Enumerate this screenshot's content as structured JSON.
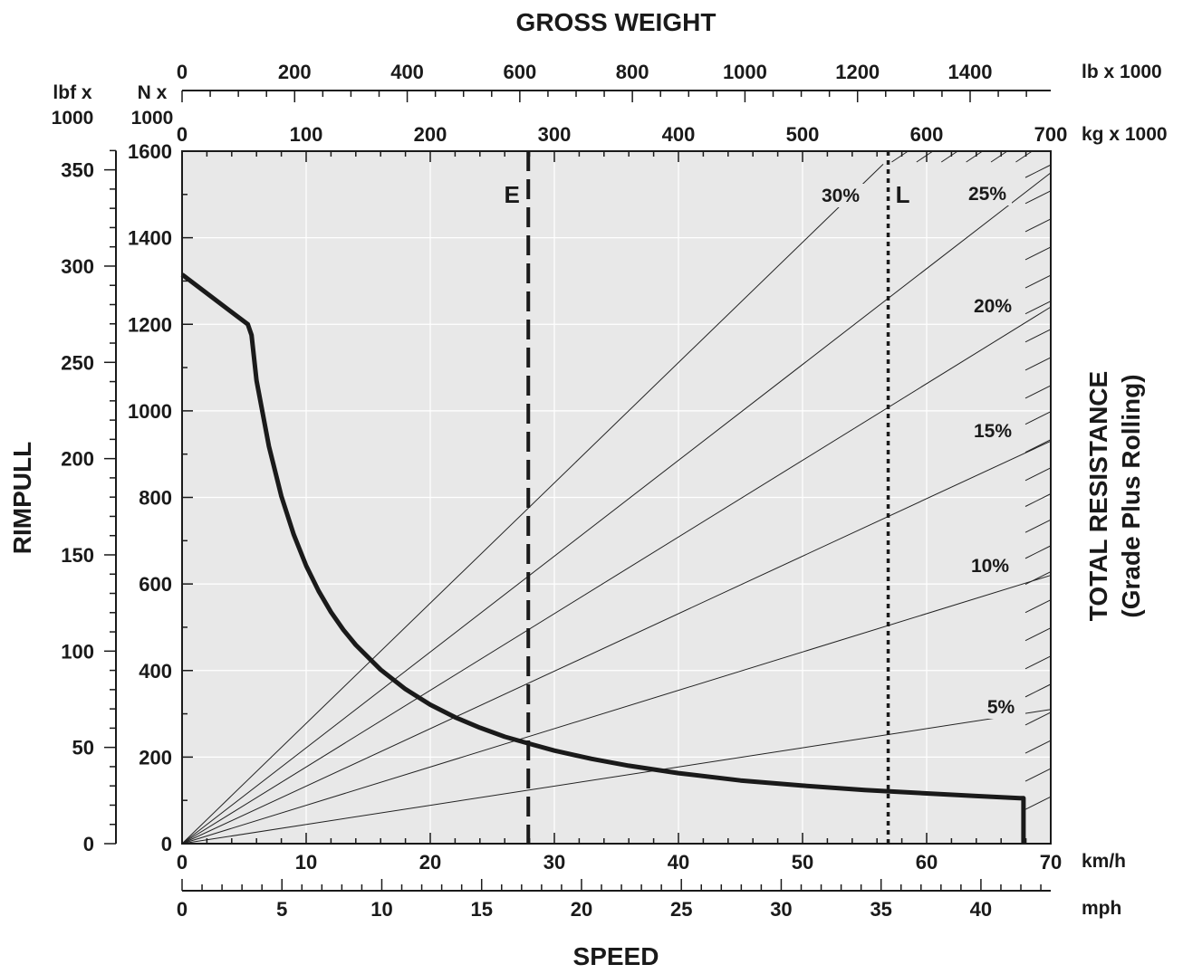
{
  "chart_data": {
    "type": "line",
    "title": "GROSS WEIGHT",
    "xlabel": "SPEED",
    "ylabel": "RIMPULL",
    "y2label": "TOTAL RESISTANCE",
    "y2sublabel": "(Grade Plus Rolling)",
    "x_kmh": {
      "unit": "km/h",
      "range": [
        0,
        70
      ],
      "ticks": [
        0,
        10,
        20,
        30,
        40,
        50,
        60,
        70
      ]
    },
    "x_mph": {
      "unit": "mph",
      "ticks": [
        0,
        5,
        10,
        15,
        20,
        25,
        30,
        35,
        40
      ]
    },
    "y_kN": {
      "unit_line1": "N x",
      "unit_line2": "1000",
      "range": [
        0,
        1600
      ],
      "ticks": [
        0,
        200,
        400,
        600,
        800,
        1000,
        1200,
        1400,
        1600
      ]
    },
    "y_lbf": {
      "unit_line1": "lbf x",
      "unit_line2": "1000",
      "ticks": [
        0,
        50,
        100,
        150,
        200,
        250,
        300,
        350
      ]
    },
    "top_kg": {
      "unit": "kg x 1000",
      "range": [
        0,
        700
      ],
      "ticks": [
        0,
        100,
        200,
        300,
        400,
        500,
        600,
        700
      ]
    },
    "top_lb": {
      "unit": "lb x 1000",
      "ticks": [
        0,
        200,
        400,
        600,
        800,
        1000,
        1200,
        1400
      ]
    },
    "rimpull_curve": {
      "x": [
        0,
        5.3,
        5.6,
        6,
        7,
        8,
        9,
        10,
        11,
        12,
        13,
        14,
        16,
        18,
        20,
        22,
        24,
        26,
        28,
        30,
        33,
        36,
        40,
        45,
        50,
        55,
        60,
        64,
        67.5,
        67.8,
        67.8
      ],
      "y": [
        1315,
        1200,
        1175,
        1070,
        918,
        803,
        714,
        642,
        584,
        535,
        494,
        459,
        402,
        357,
        321,
        292,
        268,
        247,
        231,
        215,
        196,
        180,
        163,
        146,
        134,
        124,
        116,
        110,
        105,
        105,
        0
      ]
    },
    "grade_lines": [
      {
        "label": "5%",
        "end": [
          70,
          310
        ]
      },
      {
        "label": "10%",
        "end": [
          70,
          620
        ]
      },
      {
        "label": "15%",
        "end": [
          70,
          930
        ]
      },
      {
        "label": "20%",
        "end": [
          70,
          1240
        ]
      },
      {
        "label": "25%",
        "end": [
          70,
          1550
        ]
      },
      {
        "label": "30%",
        "end": [
          56.5,
          1570
        ]
      }
    ],
    "grade_ticks_right": [
      100,
      165,
      230,
      295,
      360,
      425,
      490,
      555,
      620,
      680,
      740,
      800,
      860,
      925,
      990,
      1050,
      1115,
      1180,
      1245,
      1305,
      1370,
      1435,
      1500,
      1560
    ],
    "grade_ticks_top": [
      58.5,
      60.5,
      62.5,
      64.5,
      66.5,
      68.5
    ],
    "markers": [
      {
        "label": "E",
        "x": 27.9,
        "style": "dashed"
      },
      {
        "label": "L",
        "x": 56.9,
        "style": "dotted"
      }
    ],
    "grid": true
  }
}
